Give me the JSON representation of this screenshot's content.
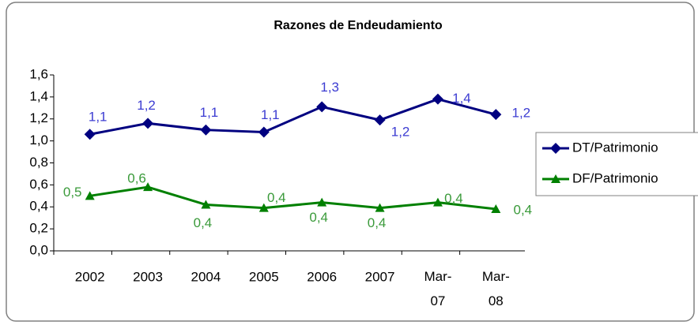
{
  "chart_data": {
    "type": "line",
    "title": "Razones de Endeudamiento",
    "categories": [
      "2002",
      "2003",
      "2004",
      "2005",
      "2006",
      "2007",
      "Mar-07",
      "Mar-08"
    ],
    "series": [
      {
        "name": "DT/Patrimonio",
        "color": "#000080",
        "label_color": "#3c3cd2",
        "marker": "diamond",
        "values": [
          1.06,
          1.16,
          1.1,
          1.08,
          1.31,
          1.19,
          1.38,
          1.24
        ],
        "value_labels": [
          "1,1",
          "1,2",
          "1,1",
          "1,1",
          "1,3",
          "1,2",
          "1,4",
          "1,2"
        ]
      },
      {
        "name": "DF/Patrimonio",
        "color": "#008000",
        "label_color": "#3a9a3a",
        "marker": "triangle",
        "values": [
          0.5,
          0.58,
          0.42,
          0.39,
          0.44,
          0.39,
          0.44,
          0.38
        ],
        "value_labels": [
          "0,5",
          "0,6",
          "0,4",
          "0,4",
          "0,4",
          "0,4",
          "0,4",
          "0,4"
        ]
      }
    ],
    "ylim": [
      0,
      1.6
    ],
    "yticks": [
      {
        "value": 0,
        "label": "0,0"
      },
      {
        "value": 0.2,
        "label": "0,2"
      },
      {
        "value": 0.4,
        "label": "0,4"
      },
      {
        "value": 0.6,
        "label": "0,6"
      },
      {
        "value": 0.8,
        "label": "0,8"
      },
      {
        "value": 1.0,
        "label": "1,0"
      },
      {
        "value": 1.2,
        "label": "1,2"
      },
      {
        "value": 1.4,
        "label": "1,4"
      },
      {
        "value": 1.6,
        "label": "1,6"
      }
    ],
    "grid": false,
    "legend": "right"
  }
}
